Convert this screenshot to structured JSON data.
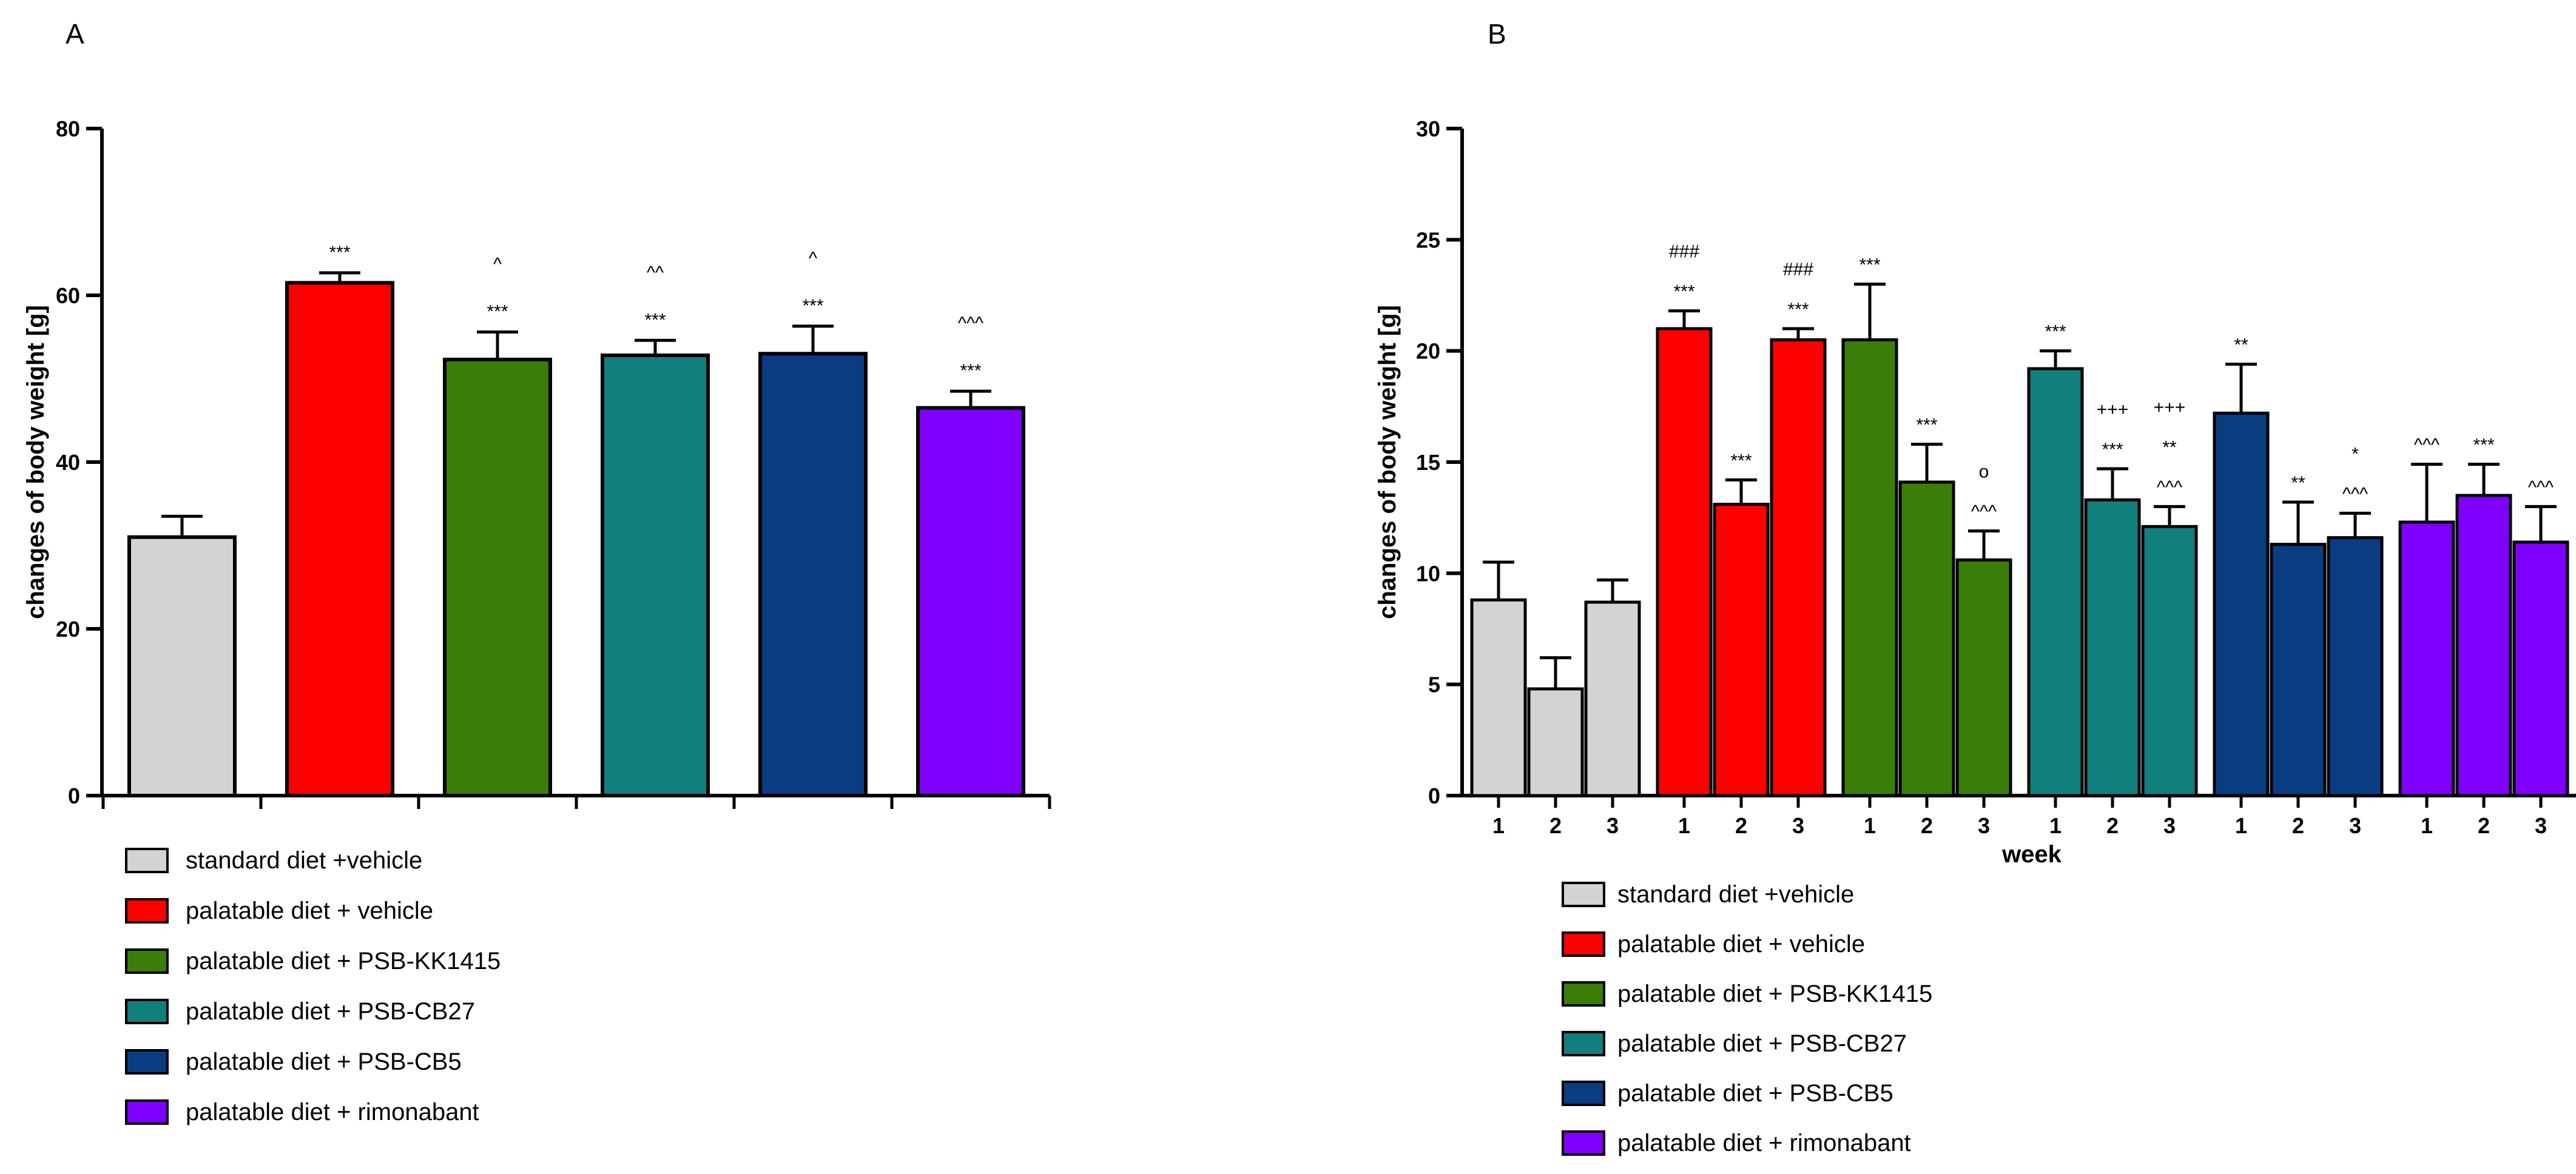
{
  "chart_data": [
    {
      "panel": "A",
      "type": "bar",
      "title": "",
      "xlabel": "",
      "ylabel": "changes of body weight [g]",
      "ylim": [
        0,
        80
      ],
      "yticks": [
        0,
        20,
        40,
        60,
        80
      ],
      "grid": false,
      "categories": [
        " standard diet +vehicle",
        "palatable diet + vehicle",
        "palatable diet + PSB-KK1415",
        "palatable diet + PSB-CB27",
        "palatable diet + PSB-CB5",
        "palatable diet + rimonabant"
      ],
      "values": [
        31,
        61.5,
        52.3,
        52.8,
        53,
        46.5
      ],
      "errors": [
        2.5,
        1.2,
        3.3,
        1.8,
        3.3,
        2.0
      ],
      "colors": [
        "#d3d3d3",
        "#ff0000",
        "#3a7d08",
        "#11807d",
        "#0a3c82",
        "#8000ff"
      ],
      "annotations": [
        [],
        [
          "***"
        ],
        [
          "***",
          "^"
        ],
        [
          "***",
          "^^"
        ],
        [
          "***",
          "^"
        ],
        [
          "***",
          "^^^"
        ]
      ]
    },
    {
      "panel": "B",
      "type": "bar",
      "title": "",
      "xlabel": "week",
      "ylabel": "changes of body weight [g]",
      "ylim": [
        0,
        30
      ],
      "yticks": [
        0,
        5,
        10,
        15,
        20,
        25,
        30
      ],
      "grid": false,
      "weeks": [
        "1",
        "2",
        "3"
      ],
      "series": [
        {
          "name": " standard diet +vehicle",
          "color": "#d3d3d3",
          "values": [
            8.8,
            4.8,
            8.7
          ],
          "errors": [
            1.7,
            1.4,
            1.0
          ],
          "annotations": [
            [],
            [],
            []
          ]
        },
        {
          "name": "palatable diet + vehicle",
          "color": "#ff0000",
          "values": [
            21,
            13.1,
            20.5
          ],
          "errors": [
            0.8,
            1.1,
            0.5
          ],
          "annotations": [
            [
              "***",
              "###"
            ],
            [
              "***"
            ],
            [
              "***",
              "###"
            ]
          ]
        },
        {
          "name": "palatable diet + PSB-KK1415",
          "color": "#3a7d08",
          "values": [
            20.5,
            14.1,
            10.6
          ],
          "errors": [
            2.5,
            1.7,
            1.3
          ],
          "annotations": [
            [
              "***"
            ],
            [
              "***"
            ],
            [
              "^^^",
              "o"
            ]
          ]
        },
        {
          "name": "palatable diet + PSB-CB27",
          "color": "#11807d",
          "values": [
            19.2,
            13.3,
            12.1
          ],
          "errors": [
            0.8,
            1.4,
            0.9
          ],
          "annotations": [
            [
              "***"
            ],
            [
              "***",
              "+++"
            ],
            [
              "^^^",
              "**",
              "+++"
            ]
          ]
        },
        {
          "name": "palatable diet + PSB-CB5",
          "color": "#0a3c82",
          "values": [
            17.2,
            11.3,
            11.6
          ],
          "errors": [
            2.2,
            1.9,
            1.1
          ],
          "annotations": [
            [
              "**"
            ],
            [
              "**"
            ],
            [
              "^^^",
              "*"
            ]
          ]
        },
        {
          "name": "palatable diet + rimonabant",
          "color": "#8000ff",
          "values": [
            12.3,
            13.5,
            11.4
          ],
          "errors": [
            2.6,
            1.4,
            1.6
          ],
          "annotations": [
            [
              "^^^"
            ],
            [
              "***"
            ],
            [
              "^^^"
            ]
          ]
        }
      ]
    }
  ]
}
